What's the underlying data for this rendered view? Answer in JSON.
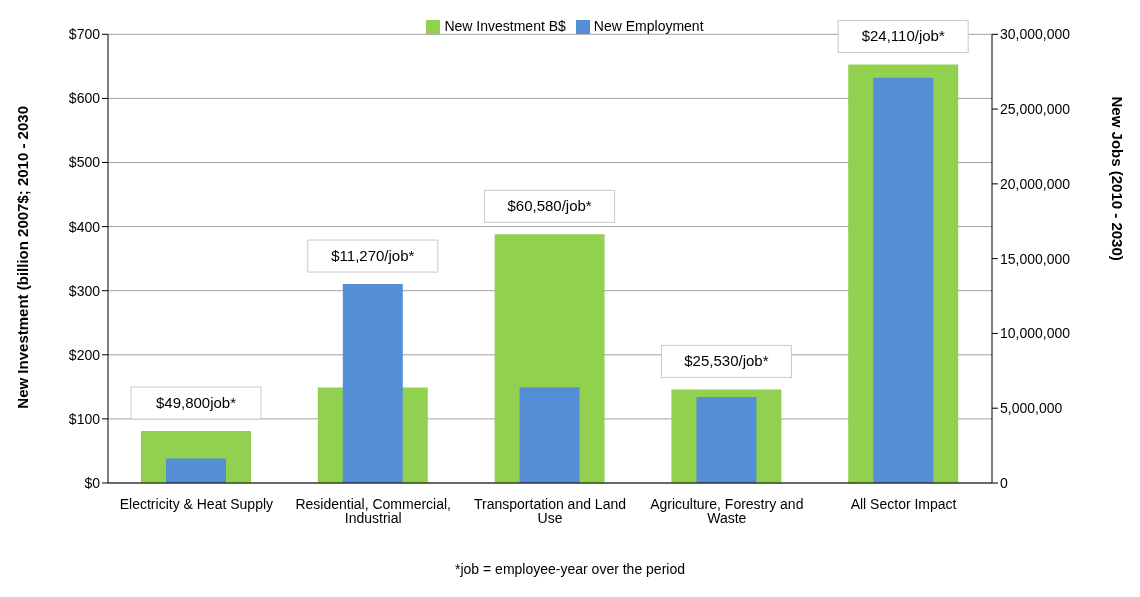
{
  "chart_data": {
    "type": "bar",
    "ylabel": "New Investment  (billion 2007$; 2010 - 2030",
    "y2label": "New Jobs (2010 - 2030)",
    "categories": [
      "Electricity & Heat Supply",
      "Residential, Commercial, Industrial",
      "Transportation and Land Use",
      "Agriculture, Forestry and Waste",
      "All Sector Impact"
    ],
    "series": [
      {
        "name": "New Investment B$",
        "color": "#92d050",
        "values": [
          81,
          149,
          388,
          146,
          653
        ]
      },
      {
        "name": "New Employment",
        "color": "#558ed5",
        "axis": "y2",
        "values": [
          1630000,
          13300000,
          6400000,
          5750000,
          27100000
        ]
      }
    ],
    "ylim": [
      0,
      700
    ],
    "yticks": [
      {
        "value": 0,
        "label": "$0"
      },
      {
        "value": 100,
        "label": "$100"
      },
      {
        "value": 200,
        "label": "$200"
      },
      {
        "value": 300,
        "label": "$300"
      },
      {
        "value": 400,
        "label": "$400"
      },
      {
        "value": 500,
        "label": "$500"
      },
      {
        "value": 600,
        "label": "$600"
      },
      {
        "value": 700,
        "label": "$700"
      }
    ],
    "y2lim": [
      0,
      30000000
    ],
    "y2ticks": [
      0,
      {
        "value": 5000000,
        "label": "5,000,000"
      },
      {
        "value": 10000000,
        "label": "10,000,000"
      },
      {
        "value": 15000000,
        "label": "15,000,000"
      },
      {
        "value": 20000000,
        "label": "20,000,000"
      },
      {
        "value": 25000000,
        "label": "25,000,000"
      },
      {
        "value": 30000000,
        "label": "30,000,000"
      }
    ],
    "grid": "y",
    "legend": "top",
    "annotations": [
      "$49,800job*",
      "$11,270/job*",
      "$60,580/job*",
      "$25,530/job*",
      "$24,110/job*",
      "*job = employee-year over the period"
    ]
  }
}
